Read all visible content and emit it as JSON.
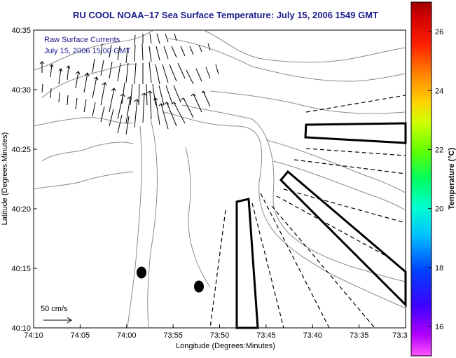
{
  "chart_data": {
    "type": "map",
    "title": "RU COOL  NOAA–17  Sea Surface Temperature:  July 15, 2006 1549 GMT",
    "xlabel": "Longitude (Degrees:Minutes)",
    "ylabel": "Latitude (Degrees:Minutes)",
    "x_ticks": [
      "74:10",
      "74:05",
      "74:00",
      "73:55",
      "73:50",
      "73:45",
      "73:40",
      "73:35",
      "73:3"
    ],
    "y_ticks": [
      "40:35",
      "40:30",
      "40:25",
      "40:20",
      "40:15",
      "40:10"
    ],
    "colorbar": {
      "label": "Temperature (°C)",
      "ticks": [
        "26",
        "24",
        "22",
        "20",
        "18",
        "16"
      ],
      "range": [
        15,
        27
      ]
    },
    "annotations": {
      "line1": "Raw Surface Currents",
      "line2": "July 15, 2006 15:00 GMT",
      "scale_label": "50 cm/s"
    },
    "markers": [
      {
        "lon_min": -59.75,
        "lat_min": 14.7
      },
      {
        "lon_min": -57.2,
        "lat_min": 13.5
      }
    ]
  },
  "colors": {
    "title": "#1a1a8c",
    "contour": "#888888",
    "vectors": "#000000"
  }
}
